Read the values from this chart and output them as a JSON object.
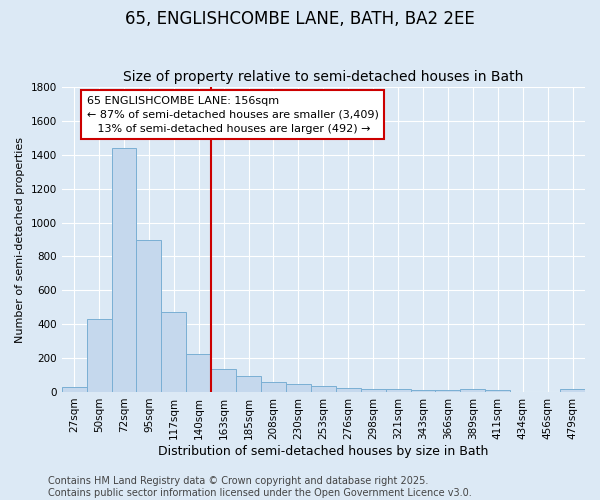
{
  "title": "65, ENGLISHCOMBE LANE, BATH, BA2 2EE",
  "subtitle": "Size of property relative to semi-detached houses in Bath",
  "xlabel": "Distribution of semi-detached houses by size in Bath",
  "ylabel": "Number of semi-detached properties",
  "bar_labels": [
    "27sqm",
    "50sqm",
    "72sqm",
    "95sqm",
    "117sqm",
    "140sqm",
    "163sqm",
    "185sqm",
    "208sqm",
    "230sqm",
    "253sqm",
    "276sqm",
    "298sqm",
    "321sqm",
    "343sqm",
    "366sqm",
    "389sqm",
    "411sqm",
    "434sqm",
    "456sqm",
    "479sqm"
  ],
  "bar_values": [
    30,
    430,
    1440,
    900,
    470,
    225,
    135,
    95,
    60,
    45,
    35,
    25,
    18,
    15,
    12,
    10,
    15,
    12,
    2,
    2,
    15
  ],
  "bar_color": "#c5d8ed",
  "bar_edge_color": "#7aafd4",
  "bar_edge_width": 0.7,
  "background_color": "#dce9f5",
  "grid_color": "#ffffff",
  "ylim": [
    0,
    1800
  ],
  "yticks": [
    0,
    200,
    400,
    600,
    800,
    1000,
    1200,
    1400,
    1600,
    1800
  ],
  "red_line_index": 6,
  "red_line_color": "#cc0000",
  "annotation_line1": "65 ENGLISHCOMBE LANE: 156sqm",
  "annotation_line2": "← 87% of semi-detached houses are smaller (3,409)",
  "annotation_line3": "   13% of semi-detached houses are larger (492) →",
  "annotation_box_color": "#ffffff",
  "annotation_box_edge": "#cc0000",
  "footer_text": "Contains HM Land Registry data © Crown copyright and database right 2025.\nContains public sector information licensed under the Open Government Licence v3.0.",
  "title_fontsize": 12,
  "subtitle_fontsize": 10,
  "annotation_fontsize": 8,
  "footer_fontsize": 7,
  "ylabel_fontsize": 8,
  "xlabel_fontsize": 9,
  "tick_fontsize": 7.5
}
